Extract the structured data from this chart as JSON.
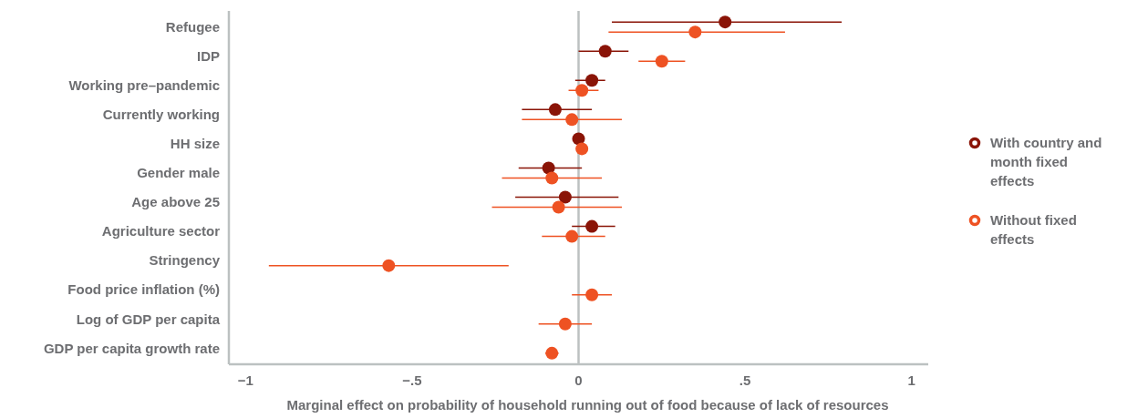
{
  "chart_data": {
    "type": "scatter",
    "orientation": "horizontal",
    "xlabel": "Marginal effect on probability of household running out of food because of lack of resources",
    "categories": [
      "Refugee",
      "IDP",
      "Working pre–pandemic",
      "Currently working",
      "HH size",
      "Gender male",
      "Age above 25",
      "Agriculture sector",
      "Stringency",
      "Food price inflation (%)",
      "Log of GDP per capita",
      "GDP per capita growth rate"
    ],
    "series": [
      {
        "name": "With country and month fixed effects",
        "color": "#8a1407",
        "values": [
          0.44,
          0.08,
          0.04,
          -0.07,
          0.0,
          -0.09,
          -0.04,
          0.04,
          null,
          null,
          null,
          null
        ],
        "errors": [
          [
            0.1,
            0.79
          ],
          [
            0.0,
            0.15
          ],
          [
            -0.01,
            0.08
          ],
          [
            -0.17,
            0.04
          ],
          null,
          [
            -0.18,
            0.01
          ],
          [
            -0.19,
            0.12
          ],
          [
            -0.02,
            0.11
          ],
          null,
          null,
          null,
          null
        ]
      },
      {
        "name": "Without fixed effects",
        "color": "#ee5223",
        "values": [
          0.35,
          0.25,
          0.01,
          -0.02,
          0.01,
          -0.08,
          -0.06,
          -0.02,
          -0.57,
          0.04,
          -0.04,
          -0.08
        ],
        "errors": [
          [
            0.09,
            0.62
          ],
          [
            0.18,
            0.32
          ],
          [
            -0.03,
            0.06
          ],
          [
            -0.17,
            0.13
          ],
          null,
          [
            -0.23,
            0.07
          ],
          [
            -0.26,
            0.13
          ],
          [
            -0.11,
            0.08
          ],
          [
            -0.93,
            -0.21
          ],
          [
            -0.02,
            0.1
          ],
          [
            -0.12,
            0.04
          ],
          [
            -0.1,
            -0.06
          ]
        ]
      }
    ],
    "xlim": [
      -1.05,
      1.05
    ],
    "xticks": [
      {
        "value": -1,
        "label": "−1"
      },
      {
        "value": -0.5,
        "label": "−.5"
      },
      0,
      {
        "value": 0.5,
        "label": ".5"
      },
      1
    ],
    "ref_lines": [
      {
        "axis": "x",
        "value": 0,
        "color": "#bcc1c1"
      }
    ],
    "marker": "circle",
    "legend": "right",
    "grid": false
  }
}
